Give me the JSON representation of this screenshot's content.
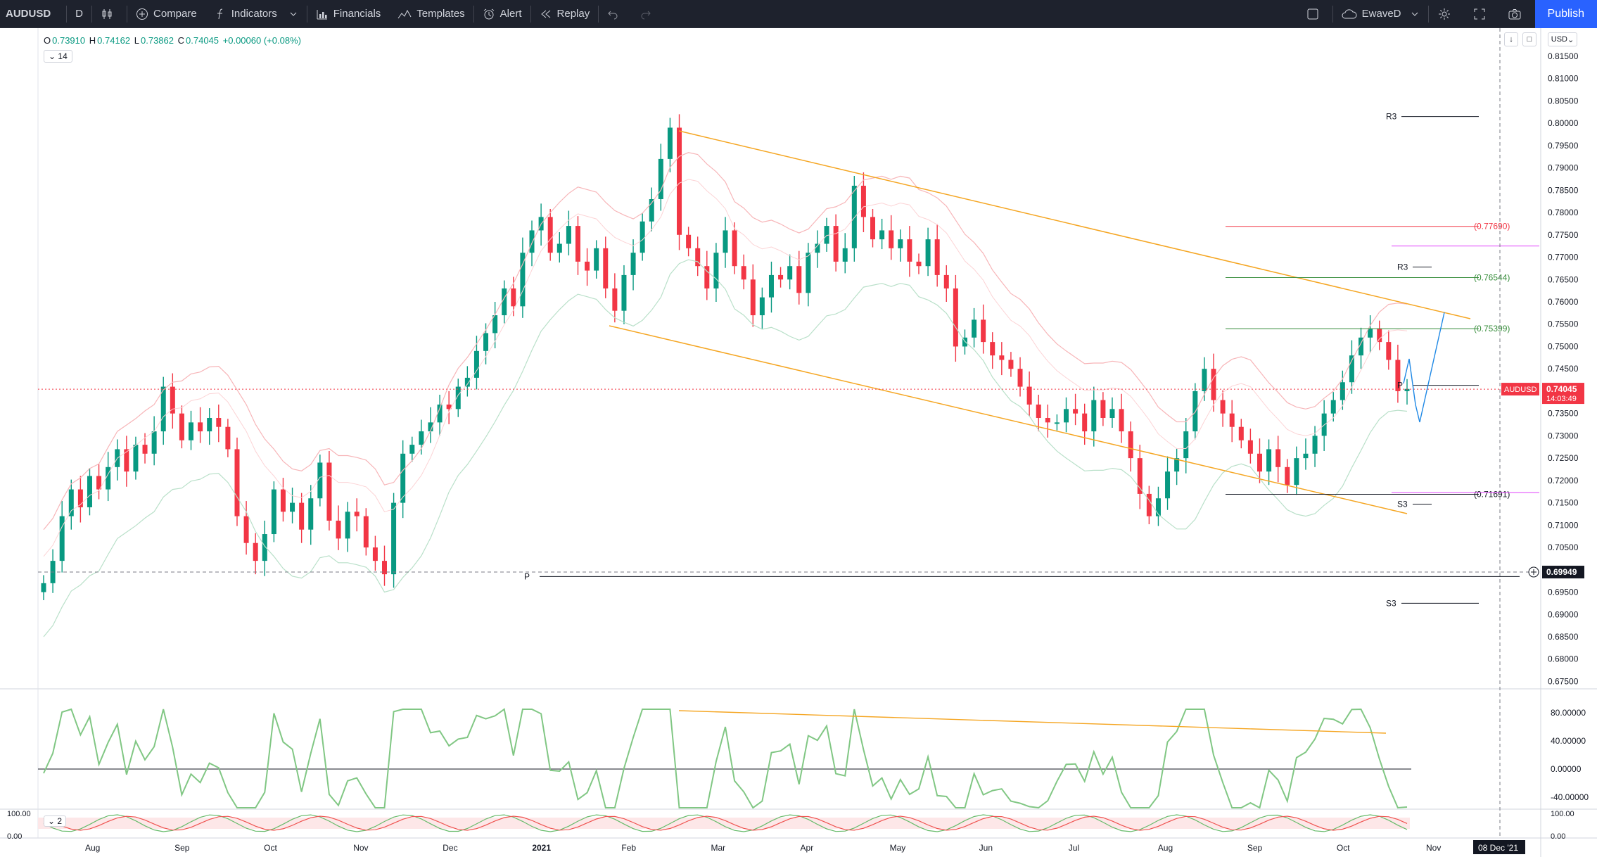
{
  "toolbar": {
    "symbol": "AUDUSD",
    "interval": "D",
    "compare": "Compare",
    "indicators": "Indicators",
    "financials": "Financials",
    "templates": "Templates",
    "alert": "Alert",
    "replay": "Replay",
    "layout_name": "EwaveD",
    "publish": "Publish"
  },
  "legend": {
    "open_label": "O",
    "open": "0.73910",
    "high_label": "H",
    "high": "0.74162",
    "low_label": "L",
    "low": "0.73862",
    "close_label": "C",
    "close": "0.74045",
    "change": "+0.00060 (+0.08%)",
    "indicator_length": "14",
    "lower_indicator": "2"
  },
  "currency": "USD",
  "price_badge": {
    "symbol": "AUDUSD",
    "price": "0.74045",
    "countdown": "14:03:49"
  },
  "crosshair_badge": "0.69949",
  "date_badge": "08 Dec '21",
  "colors": {
    "bull": "#089981",
    "bear": "#f23645",
    "accent": "#2962ff",
    "trend_channel": "#f5a623",
    "rsi_up": "#81c784",
    "rsi_down": "#ef5350"
  },
  "chart_data": {
    "type": "candlestick",
    "symbol": "AUDUSD",
    "timeframe": "D",
    "price_axis": {
      "ticks": [
        "0.81500",
        "0.81000",
        "0.80500",
        "0.80000",
        "0.79500",
        "0.79000",
        "0.78500",
        "0.78000",
        "0.77500",
        "0.77000",
        "0.76500",
        "0.76000",
        "0.75500",
        "0.75000",
        "0.74500",
        "0.74000",
        "0.73500",
        "0.73000",
        "0.72500",
        "0.72000",
        "0.71500",
        "0.71000",
        "0.70500",
        "0.70000",
        "0.69500",
        "0.69000",
        "0.68500",
        "0.68000",
        "0.67500"
      ],
      "range": [
        0.6735,
        0.8205
      ]
    },
    "time_axis": [
      "Aug",
      "Sep",
      "Oct",
      "Nov",
      "Dec",
      "2021",
      "Feb",
      "Mar",
      "Apr",
      "May",
      "Jun",
      "Jul",
      "Aug",
      "Sep",
      "Oct",
      "Nov"
    ],
    "closes_path": [
      0.697,
      0.702,
      0.712,
      0.718,
      0.714,
      0.721,
      0.718,
      0.723,
      0.727,
      0.722,
      0.728,
      0.726,
      0.731,
      0.741,
      0.735,
      0.729,
      0.733,
      0.731,
      0.734,
      0.732,
      0.727,
      0.712,
      0.706,
      0.702,
      0.708,
      0.718,
      0.713,
      0.715,
      0.709,
      0.716,
      0.724,
      0.711,
      0.707,
      0.713,
      0.712,
      0.705,
      0.702,
      0.699,
      0.715,
      0.726,
      0.728,
      0.731,
      0.733,
      0.737,
      0.736,
      0.741,
      0.743,
      0.749,
      0.753,
      0.757,
      0.763,
      0.759,
      0.771,
      0.776,
      0.779,
      0.771,
      0.773,
      0.777,
      0.769,
      0.767,
      0.772,
      0.763,
      0.758,
      0.766,
      0.771,
      0.778,
      0.783,
      0.792,
      0.799,
      0.775,
      0.772,
      0.768,
      0.763,
      0.771,
      0.776,
      0.768,
      0.765,
      0.757,
      0.761,
      0.766,
      0.765,
      0.768,
      0.762,
      0.771,
      0.773,
      0.777,
      0.769,
      0.772,
      0.786,
      0.779,
      0.774,
      0.776,
      0.772,
      0.774,
      0.769,
      0.768,
      0.774,
      0.766,
      0.763,
      0.75,
      0.752,
      0.756,
      0.751,
      0.748,
      0.747,
      0.745,
      0.741,
      0.737,
      0.734,
      0.733,
      0.733,
      0.736,
      0.735,
      0.731,
      0.738,
      0.734,
      0.736,
      0.731,
      0.725,
      0.717,
      0.712,
      0.716,
      0.722,
      0.725,
      0.731,
      0.74,
      0.745,
      0.738,
      0.735,
      0.732,
      0.729,
      0.726,
      0.722,
      0.727,
      0.723,
      0.719,
      0.725,
      0.726,
      0.73,
      0.735,
      0.738,
      0.742,
      0.748,
      0.752,
      0.754,
      0.751,
      0.747,
      0.74,
      0.7405
    ],
    "overlay_levels": [
      {
        "label": "R3",
        "value": 0.8015
      },
      {
        "label": "(0.77690)",
        "value": 0.7769
      },
      {
        "label": "R3",
        "value": 0.7678
      },
      {
        "label": "(0.76544)",
        "value": 0.76544
      },
      {
        "label": "(0.75399)",
        "value": 0.75399
      },
      {
        "label": "P",
        "value": 0.7413
      },
      {
        "label": "(0.71691)",
        "value": 0.71691
      },
      {
        "label": "S3",
        "value": 0.7147
      },
      {
        "label": "P",
        "value": 0.6985
      },
      {
        "label": "S3",
        "value": 0.6925
      }
    ],
    "rsi_panel": {
      "ticks": [
        "80.00000",
        "40.00000",
        "0.00000",
        "-40.00000"
      ]
    },
    "stoch_panel": {
      "ticks": [
        "100.00",
        "0.00"
      ]
    }
  }
}
